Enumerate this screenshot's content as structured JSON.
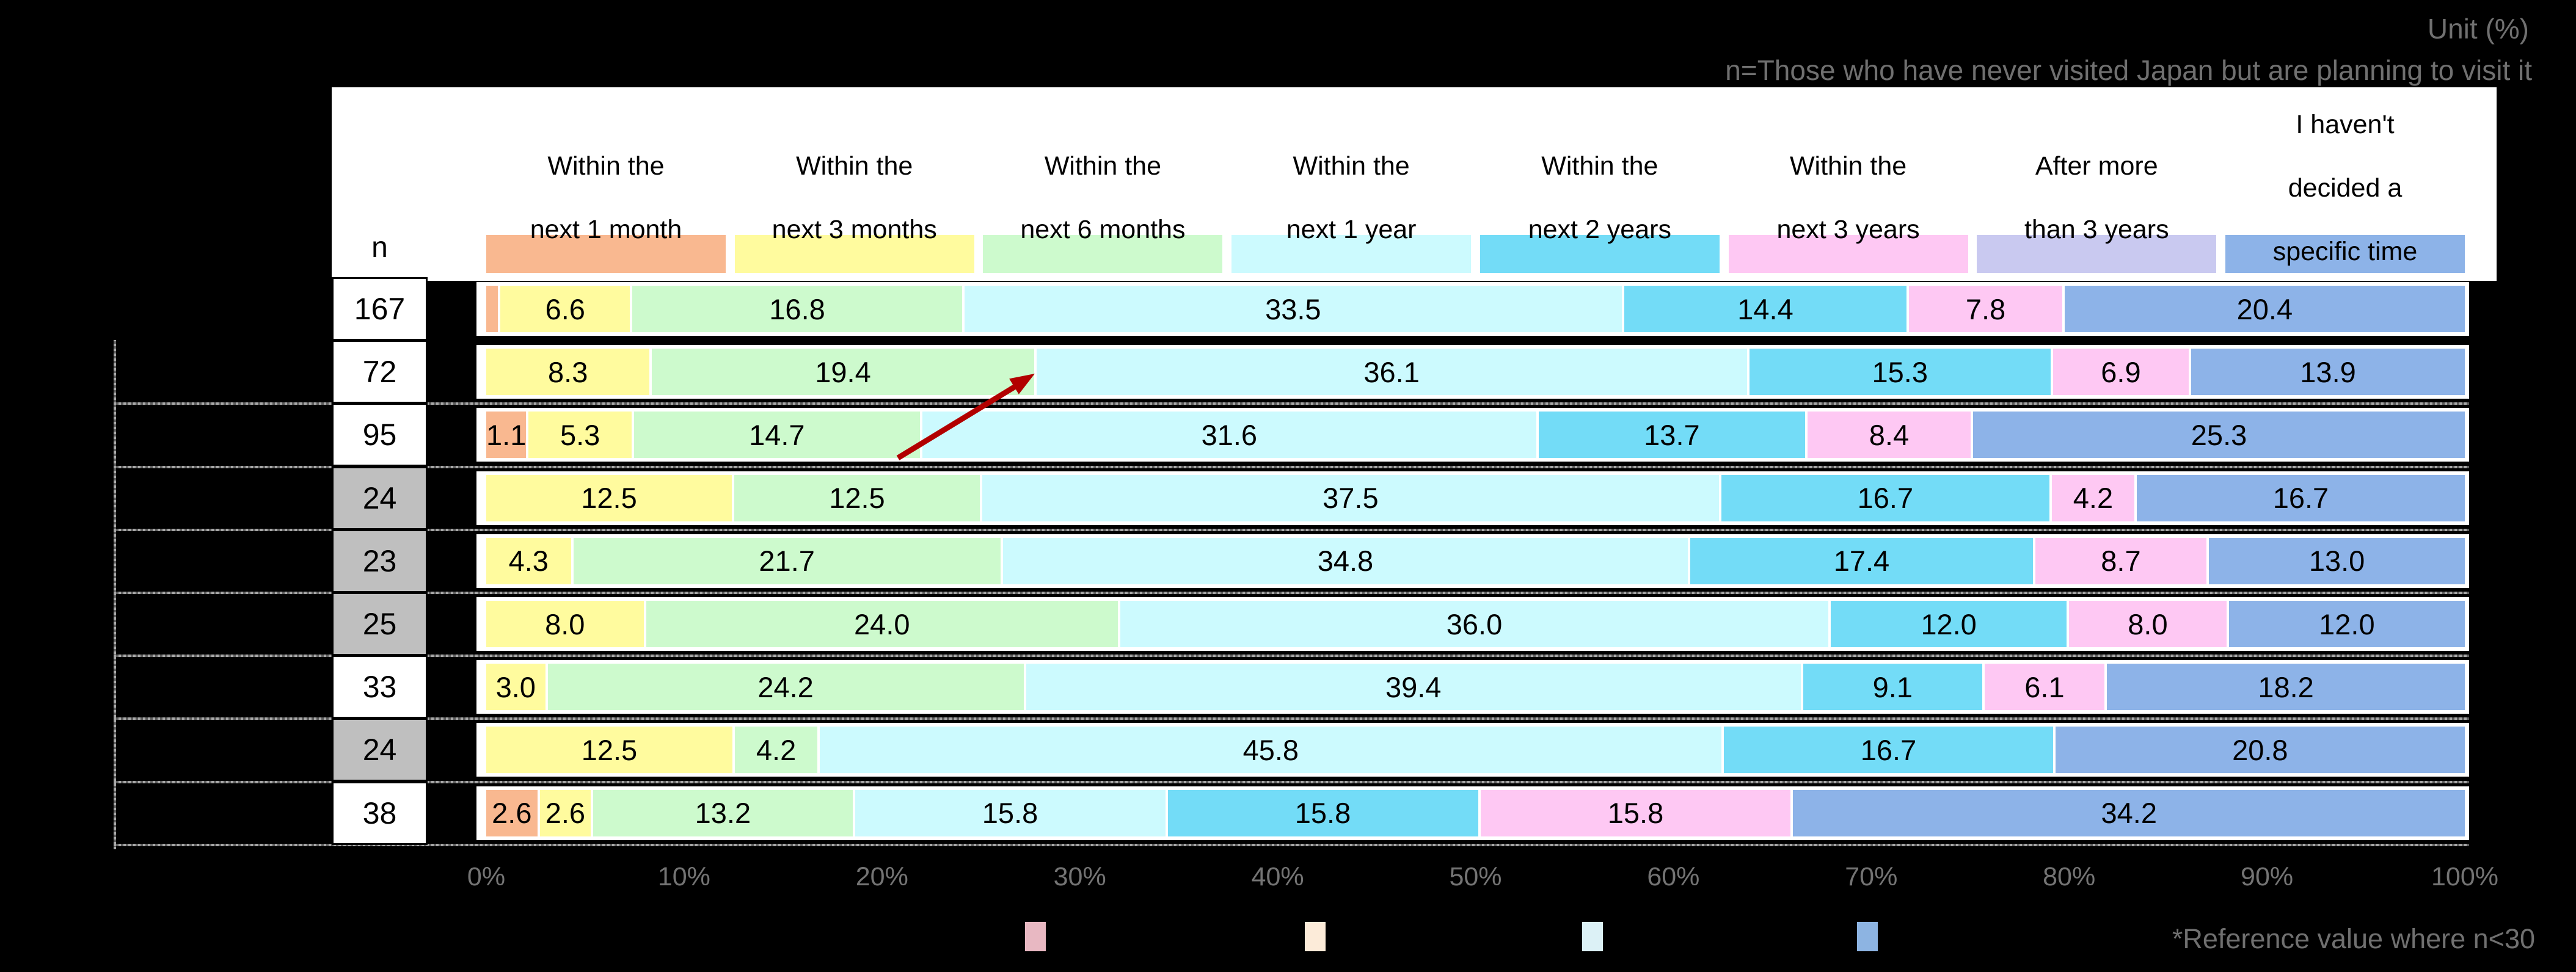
{
  "notes": {
    "unit": "Unit (%)",
    "population": "n=Those who have never visited Japan but are planning to visit it",
    "footnote": "*Reference value where n<30",
    "n_header": "n"
  },
  "colors": {
    "m1": "#F9B890",
    "m3": "#FFFB9E",
    "m6": "#CDFACD",
    "y1": "#CCFAFE",
    "y2": "#73DCF7",
    "y3": "#FEC8F3",
    "a3": "#C9C9F0",
    "nd": "#8DB3E8",
    "ref_cell_bg": "#BFBFBF",
    "arrow": "#B20000"
  },
  "legend": [
    {
      "key": "m1",
      "lines": [
        "Within the",
        "next 1 month"
      ]
    },
    {
      "key": "m3",
      "lines": [
        "Within the",
        "next 3 months"
      ]
    },
    {
      "key": "m6",
      "lines": [
        "Within the",
        "next 6 months"
      ]
    },
    {
      "key": "y1",
      "lines": [
        "Within the",
        "next 1 year"
      ]
    },
    {
      "key": "y2",
      "lines": [
        "Within the",
        "next 2 years"
      ]
    },
    {
      "key": "y3",
      "lines": [
        "Within the",
        "next 3 years"
      ]
    },
    {
      "key": "a3",
      "lines": [
        "After more",
        "than 3 years"
      ]
    },
    {
      "key": "nd",
      "lines": [
        "I haven't",
        "decided a",
        "specific time"
      ]
    }
  ],
  "axis": {
    "ticks": [
      "0%",
      "10%",
      "20%",
      "30%",
      "40%",
      "50%",
      "60%",
      "70%",
      "80%",
      "90%",
      "100%"
    ]
  },
  "rows": [
    {
      "n": "167",
      "ref": false,
      "segments": [
        {
          "key": "m1",
          "v": 0.6,
          "t": ""
        },
        {
          "key": "m3",
          "v": 6.6,
          "t": "6.6"
        },
        {
          "key": "m6",
          "v": 16.8,
          "t": "16.8"
        },
        {
          "key": "y1",
          "v": 33.5,
          "t": "33.5"
        },
        {
          "key": "y2",
          "v": 14.4,
          "t": "14.4"
        },
        {
          "key": "y3",
          "v": 7.8,
          "t": "7.8"
        },
        {
          "key": "nd",
          "v": 20.4,
          "t": "20.4"
        }
      ]
    },
    {
      "n": "72",
      "ref": false,
      "segments": [
        {
          "key": "m3",
          "v": 8.3,
          "t": "8.3"
        },
        {
          "key": "m6",
          "v": 19.4,
          "t": "19.4"
        },
        {
          "key": "y1",
          "v": 36.1,
          "t": "36.1"
        },
        {
          "key": "y2",
          "v": 15.3,
          "t": "15.3"
        },
        {
          "key": "y3",
          "v": 6.9,
          "t": "6.9"
        },
        {
          "key": "nd",
          "v": 13.9,
          "t": "13.9"
        }
      ]
    },
    {
      "n": "95",
      "ref": false,
      "segments": [
        {
          "key": "m1",
          "v": 1.1,
          "t": "1.1"
        },
        {
          "key": "m3",
          "v": 5.3,
          "t": "5.3"
        },
        {
          "key": "m6",
          "v": 14.7,
          "t": "14.7"
        },
        {
          "key": "y1",
          "v": 31.6,
          "t": "31.6"
        },
        {
          "key": "y2",
          "v": 13.7,
          "t": "13.7"
        },
        {
          "key": "y3",
          "v": 8.4,
          "t": "8.4"
        },
        {
          "key": "nd",
          "v": 25.3,
          "t": "25.3"
        }
      ]
    },
    {
      "n": "24",
      "ref": true,
      "segments": [
        {
          "key": "m3",
          "v": 12.5,
          "t": "12.5"
        },
        {
          "key": "m6",
          "v": 12.5,
          "t": "12.5"
        },
        {
          "key": "y1",
          "v": 37.5,
          "t": "37.5"
        },
        {
          "key": "y2",
          "v": 16.7,
          "t": "16.7"
        },
        {
          "key": "y3",
          "v": 4.2,
          "t": "4.2"
        },
        {
          "key": "nd",
          "v": 16.7,
          "t": "16.7"
        }
      ]
    },
    {
      "n": "23",
      "ref": true,
      "segments": [
        {
          "key": "m3",
          "v": 4.3,
          "t": "4.3"
        },
        {
          "key": "m6",
          "v": 21.7,
          "t": "21.7"
        },
        {
          "key": "y1",
          "v": 34.8,
          "t": "34.8"
        },
        {
          "key": "y2",
          "v": 17.4,
          "t": "17.4"
        },
        {
          "key": "y3",
          "v": 8.7,
          "t": "8.7"
        },
        {
          "key": "nd",
          "v": 13.0,
          "t": "13.0"
        }
      ]
    },
    {
      "n": "25",
      "ref": true,
      "segments": [
        {
          "key": "m3",
          "v": 8.0,
          "t": "8.0"
        },
        {
          "key": "m6",
          "v": 24.0,
          "t": "24.0"
        },
        {
          "key": "y1",
          "v": 36.0,
          "t": "36.0"
        },
        {
          "key": "y2",
          "v": 12.0,
          "t": "12.0"
        },
        {
          "key": "y3",
          "v": 8.0,
          "t": "8.0"
        },
        {
          "key": "nd",
          "v": 12.0,
          "t": "12.0"
        }
      ]
    },
    {
      "n": "33",
      "ref": false,
      "segments": [
        {
          "key": "m3",
          "v": 3.0,
          "t": "3.0"
        },
        {
          "key": "m6",
          "v": 24.2,
          "t": "24.2"
        },
        {
          "key": "y1",
          "v": 39.4,
          "t": "39.4"
        },
        {
          "key": "y2",
          "v": 9.1,
          "t": "9.1"
        },
        {
          "key": "y3",
          "v": 6.1,
          "t": "6.1"
        },
        {
          "key": "nd",
          "v": 18.2,
          "t": "18.2"
        }
      ]
    },
    {
      "n": "24",
      "ref": true,
      "segments": [
        {
          "key": "m3",
          "v": 12.5,
          "t": "12.5"
        },
        {
          "key": "m6",
          "v": 4.2,
          "t": "4.2"
        },
        {
          "key": "y1",
          "v": 45.8,
          "t": "45.8"
        },
        {
          "key": "y2",
          "v": 16.7,
          "t": "16.7"
        },
        {
          "key": "nd",
          "v": 20.8,
          "t": "20.8"
        }
      ]
    },
    {
      "n": "38",
      "ref": false,
      "segments": [
        {
          "key": "m1",
          "v": 2.6,
          "t": "2.6"
        },
        {
          "key": "m3",
          "v": 2.6,
          "t": "2.6"
        },
        {
          "key": "m6",
          "v": 13.2,
          "t": "13.2"
        },
        {
          "key": "y1",
          "v": 15.8,
          "t": "15.8"
        },
        {
          "key": "y2",
          "v": 15.8,
          "t": "15.8"
        },
        {
          "key": "y3",
          "v": 15.8,
          "t": "15.8"
        },
        {
          "key": "nd",
          "v": 34.2,
          "t": "34.2"
        }
      ]
    }
  ],
  "bottom_swatches": [
    {
      "color": "#E8B8C2"
    },
    {
      "color": "#FCEBD9"
    },
    {
      "color": "#DCF1F6"
    },
    {
      "color": "#8DB4E2"
    }
  ],
  "chart_data": {
    "type": "bar",
    "stacked": true,
    "orientation": "horizontal",
    "unit": "%",
    "title": "",
    "xlabel": "",
    "ylabel": "",
    "xlim": [
      0,
      100
    ],
    "grid": false,
    "legend_position": "top",
    "notes": [
      "Unit (%)",
      "n=Those who have never visited Japan but are planning to visit it",
      "*Reference value where n<30"
    ],
    "categories": [
      "n=167",
      "n=72",
      "n=95",
      "n=24 (reference, n<30)",
      "n=23 (reference, n<30)",
      "n=25 (reference, n<30)",
      "n=33",
      "n=24 (reference, n<30)",
      "n=38"
    ],
    "series": [
      {
        "name": "Within the next 1 month",
        "color": "#F9B890",
        "values": [
          0.6,
          0,
          1.1,
          0,
          0,
          0,
          0,
          0,
          2.6
        ]
      },
      {
        "name": "Within the next 3 months",
        "color": "#FFFB9E",
        "values": [
          6.6,
          8.3,
          5.3,
          12.5,
          4.3,
          8.0,
          3.0,
          12.5,
          2.6
        ]
      },
      {
        "name": "Within the next 6 months",
        "color": "#CDFACD",
        "values": [
          16.8,
          19.4,
          14.7,
          12.5,
          21.7,
          24.0,
          24.2,
          4.2,
          13.2
        ]
      },
      {
        "name": "Within the next 1 year",
        "color": "#CCFAFE",
        "values": [
          33.5,
          36.1,
          31.6,
          37.5,
          34.8,
          36.0,
          39.4,
          45.8,
          15.8
        ]
      },
      {
        "name": "Within the next 2 years",
        "color": "#73DCF7",
        "values": [
          14.4,
          15.3,
          13.7,
          16.7,
          17.4,
          12.0,
          9.1,
          16.7,
          15.8
        ]
      },
      {
        "name": "Within the next 3 years",
        "color": "#FEC8F3",
        "values": [
          7.8,
          6.9,
          8.4,
          4.2,
          8.7,
          8.0,
          6.1,
          0,
          15.8
        ]
      },
      {
        "name": "After more than 3 years",
        "color": "#C9C9F0",
        "values": [
          0,
          0,
          0,
          0,
          0,
          0,
          0,
          0,
          0
        ]
      },
      {
        "name": "I haven't decided a specific time",
        "color": "#8DB3E8",
        "values": [
          20.4,
          13.9,
          25.3,
          16.7,
          13.0,
          12.0,
          18.2,
          20.8,
          34.2
        ]
      }
    ]
  }
}
